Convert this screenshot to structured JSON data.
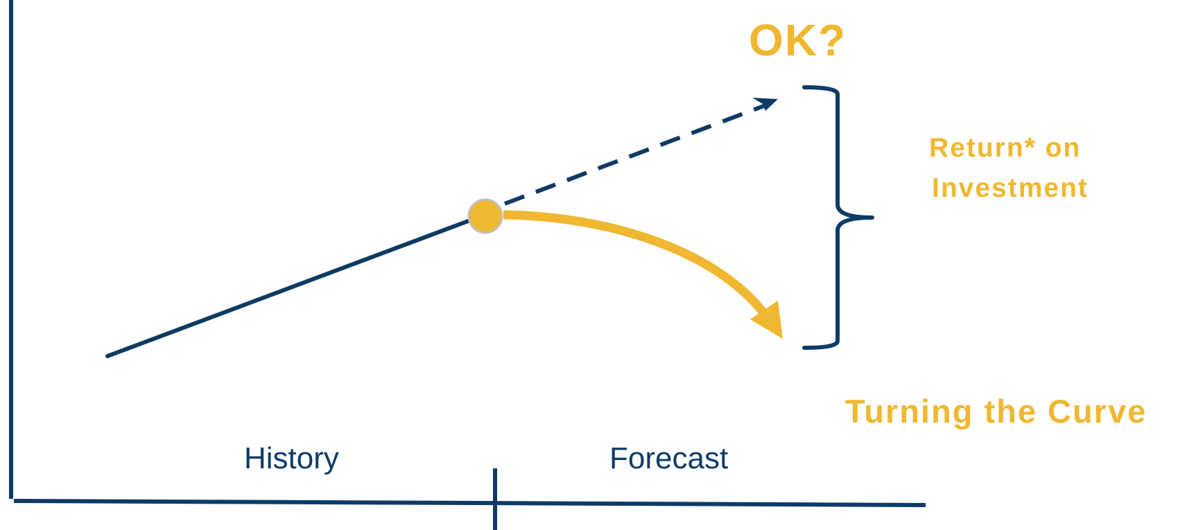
{
  "labels": {
    "ok": "OK?",
    "roi_line1": "Return*  on",
    "roi_line2": "Investment",
    "turning_curve": "Turning the Curve",
    "history": "History",
    "forecast": "Forecast"
  },
  "colors": {
    "navy": "#0e3b66",
    "gold": "#f0b731",
    "marker_outline": "#bfbfbf"
  }
}
